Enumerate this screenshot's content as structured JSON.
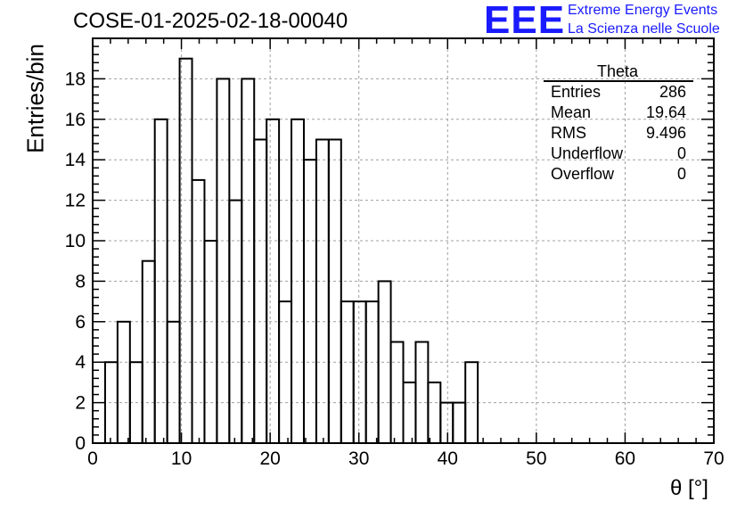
{
  "header": {
    "title": "COSE-01-2025-02-18-00040",
    "logo_text": "EEE",
    "logo_line1": "Extreme Energy Events",
    "logo_line2": "La Scienza nelle Scuole"
  },
  "stats": {
    "title": "Theta",
    "rows": [
      {
        "key": "Entries",
        "value": "286"
      },
      {
        "key": "Mean",
        "value": "19.64"
      },
      {
        "key": "RMS",
        "value": "9.496"
      },
      {
        "key": "Underflow",
        "value": "0"
      },
      {
        "key": "Overflow",
        "value": "0"
      }
    ]
  },
  "colors": {
    "accent": "#1a1aff",
    "line": "#000000",
    "grid": "#a0a0a0"
  },
  "chart_data": {
    "type": "bar",
    "histogram": true,
    "xlabel": "θ [°]",
    "ylabel": "Entries/bin",
    "xlim": [
      0,
      70
    ],
    "ylim": [
      0,
      20
    ],
    "grid": true,
    "xticks": [
      0,
      10,
      20,
      30,
      40,
      50,
      60,
      70
    ],
    "yticks": [
      0,
      2,
      4,
      6,
      8,
      10,
      12,
      14,
      16,
      18
    ],
    "bin_edges": [
      1.4,
      2.8,
      4.2,
      5.6,
      7.0,
      8.4,
      9.8,
      11.2,
      12.6,
      14.0,
      15.4,
      16.8,
      18.2,
      19.6,
      21.0,
      22.4,
      23.8,
      25.2,
      26.6,
      28.0,
      29.4,
      30.8,
      32.2,
      33.6,
      35.0,
      36.4,
      37.8,
      39.2,
      40.6,
      42.0,
      43.4
    ],
    "values": [
      4,
      6,
      4,
      9,
      16,
      6,
      19,
      13,
      10,
      18,
      12,
      18,
      15,
      16,
      7,
      16,
      14,
      15,
      15,
      7,
      7,
      7,
      8,
      5,
      3,
      5,
      3,
      2,
      2,
      4
    ]
  }
}
